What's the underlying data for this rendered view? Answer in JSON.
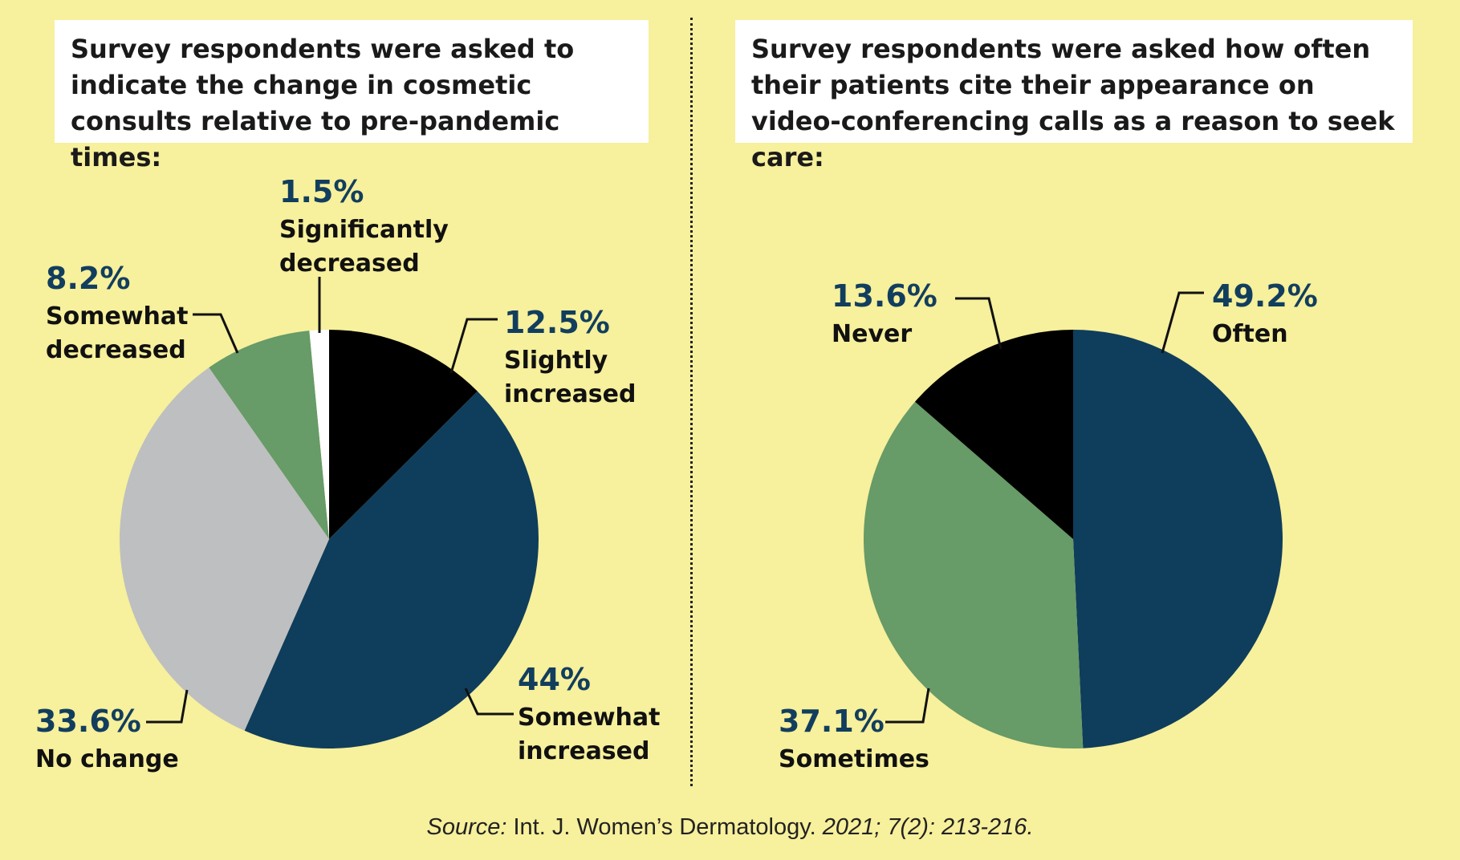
{
  "left_question": "Survey respondents were asked to indicate the change in cosmetic consults relative to pre-pandemic times:",
  "right_question": "Survey respondents were asked how often their patients cite their appearance on video-conferencing calls as a reason to seek care:",
  "source": {
    "prefix": "Source:",
    "journal": " Int. J. Women’s Dermatology.",
    "citation": " 2021; 7(2): 213-216."
  },
  "colors": {
    "background": "#F7F09C",
    "navy": "#0F3D5C",
    "green": "#679B68",
    "gray": "#BEBFC1",
    "black": "#000000",
    "white": "#FFFFFF"
  },
  "chart_data": [
    {
      "type": "pie",
      "title": "Survey respondents were asked to indicate the change in cosmetic consults relative to pre-pandemic times:",
      "slices": [
        {
          "label": "Slightly increased",
          "value": 12.5,
          "display": "12.5%",
          "color": "#000000"
        },
        {
          "label": "Somewhat increased",
          "value": 44,
          "display": "44%",
          "color": "#0F3D5C"
        },
        {
          "label": "No change",
          "value": 33.6,
          "display": "33.6%",
          "color": "#BEBFC1"
        },
        {
          "label": "Somewhat decreased",
          "value": 8.2,
          "display": "8.2%",
          "color": "#679B68"
        },
        {
          "label": "Significantly decreased",
          "value": 1.5,
          "display": "1.5%",
          "color": "#FFFFFF"
        }
      ]
    },
    {
      "type": "pie",
      "title": "Survey respondents were asked how often their patients cite their appearance on video-conferencing calls as a reason to seek care:",
      "slices": [
        {
          "label": "Often",
          "value": 49.2,
          "display": "49.2%",
          "color": "#0F3D5C"
        },
        {
          "label": "Sometimes",
          "value": 37.1,
          "display": "37.1%",
          "color": "#679B68"
        },
        {
          "label": "Never",
          "value": 13.6,
          "display": "13.6%",
          "color": "#000000"
        }
      ]
    }
  ]
}
